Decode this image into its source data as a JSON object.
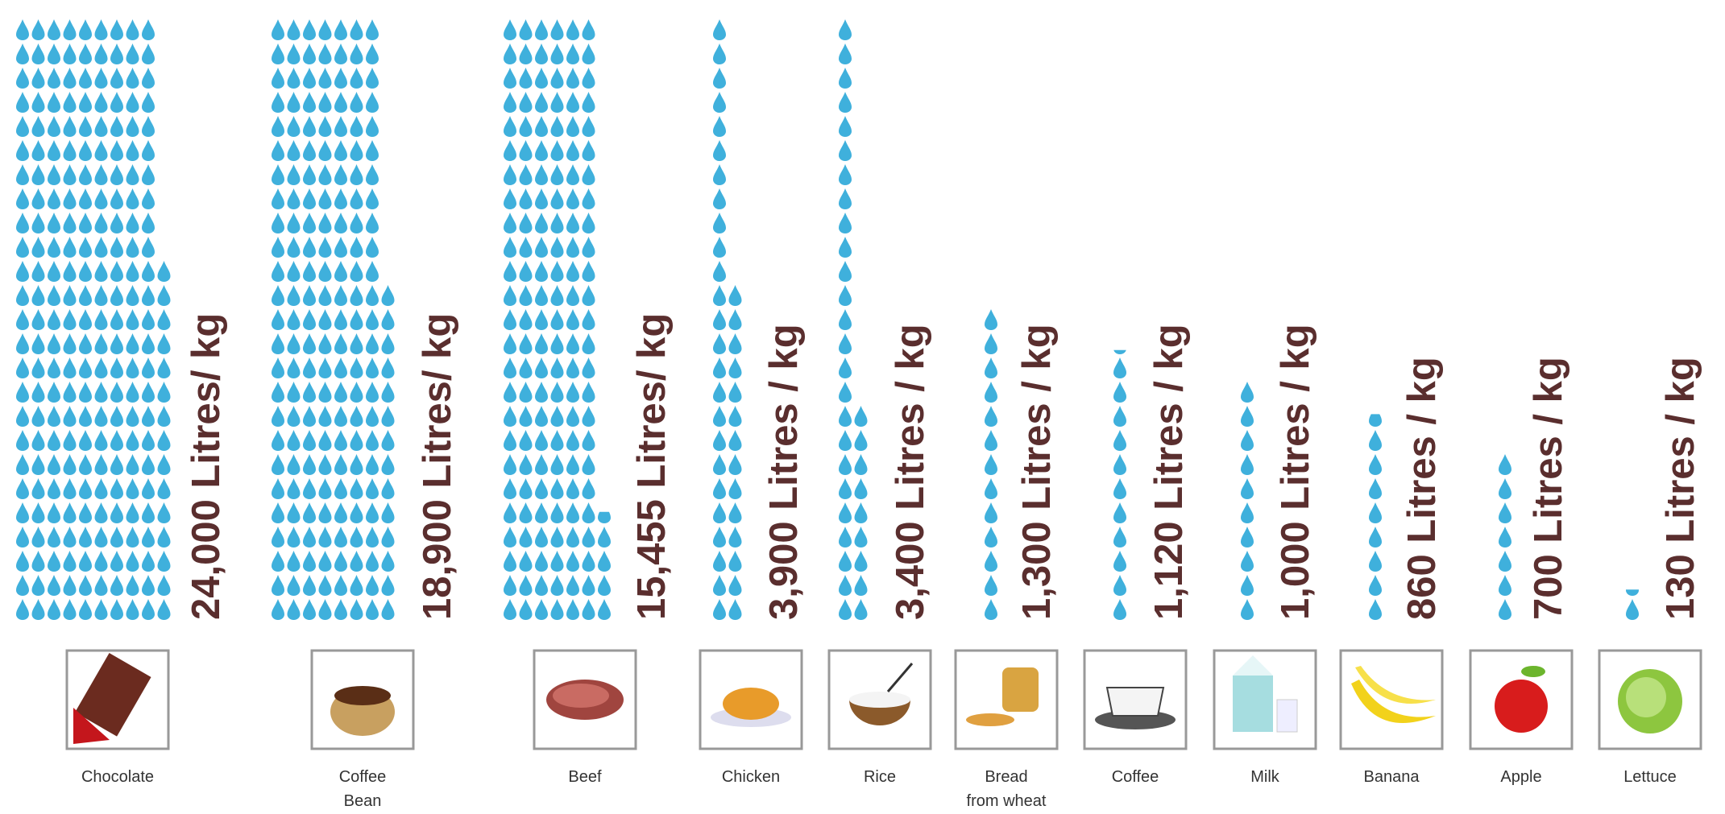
{
  "chart_data": {
    "type": "pictograph",
    "categories": [
      "Chocolate",
      "Coffee\nBean",
      "Beef",
      "Chicken",
      "Rice",
      "Bread\nfrom wheat",
      "Coffee",
      "Milk",
      "Banana",
      "Apple",
      "Lettuce"
    ],
    "values": [
      24000,
      18900,
      15455,
      3900,
      3400,
      1300,
      1120,
      1000,
      860,
      700,
      130
    ],
    "value_labels": [
      "24,000 Litres/ kg",
      "18,900 Litres/ kg",
      "15,455 Litres/ kg",
      "3,900 Litres / kg",
      "3,400 Litres / kg",
      "1,300 Litres / kg",
      "1,120 Litres / kg",
      "1,000 Litres / kg",
      "860 Litres / kg",
      "700 Litres / kg",
      "130 Litres / kg"
    ],
    "color": "#3fb0dc"
  }
}
